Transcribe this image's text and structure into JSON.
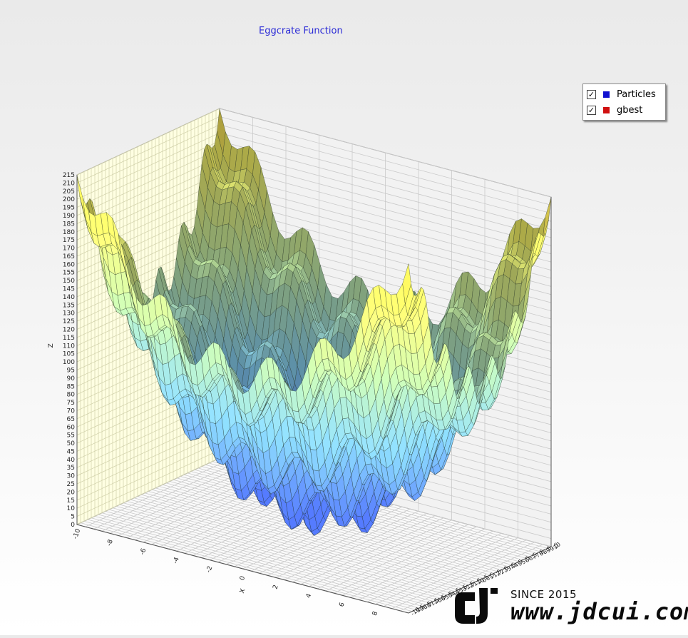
{
  "chart_data": {
    "type": "surface",
    "title": "Eggcrate Function",
    "xlabel": "X",
    "ylabel": "",
    "zlabel": "Z",
    "xlim": [
      -10,
      10
    ],
    "ylim": [
      -10,
      10
    ],
    "zlim": [
      0,
      215
    ],
    "x_ticks": [
      -10,
      -8,
      -6,
      -4,
      -2,
      0,
      2,
      4,
      6,
      8
    ],
    "z_ticks": [
      0,
      5,
      10,
      15,
      20,
      25,
      30,
      35,
      40,
      45,
      50,
      55,
      60,
      65,
      70,
      75,
      80,
      85,
      90,
      95,
      100,
      105,
      110,
      115,
      120,
      125,
      130,
      135,
      140,
      145,
      150,
      155,
      160,
      165,
      170,
      175,
      180,
      185,
      190,
      195,
      200,
      205,
      210,
      215
    ],
    "surface_function": "z = x^2 + y^2 + 25*(sin(x)^2 + sin(y)^2)",
    "series": [
      {
        "name": "Particles",
        "color": "#1010d0",
        "checked": true,
        "values": []
      },
      {
        "name": "gbest",
        "color": "#d01010",
        "checked": true,
        "values": []
      }
    ],
    "colormap": [
      "#4c6ef0",
      "#80c8ec",
      "#bfe6a0",
      "#f2ec60",
      "#f09a28"
    ],
    "grid": true,
    "legend_position": "top-right",
    "wall_color": "#ffffe2"
  },
  "legend": {
    "check_mark": "✓"
  },
  "watermark": {
    "since": "SINCE 2015",
    "url": "www.jdcui.com"
  }
}
